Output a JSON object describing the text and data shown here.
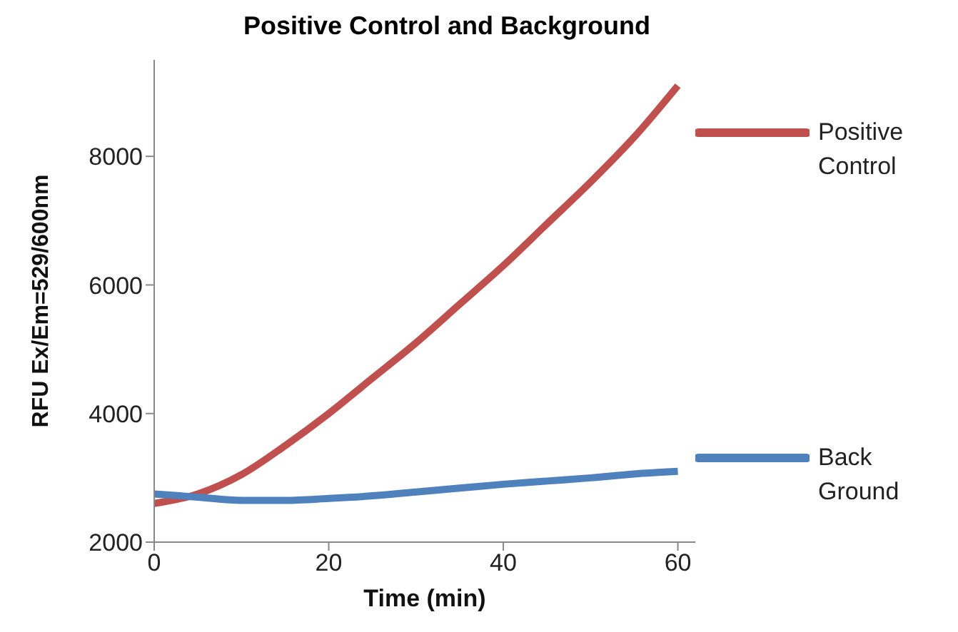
{
  "chart_data": {
    "type": "line",
    "title": "Positive Control and Background",
    "xlabel": "Time (min)",
    "ylabel": "RFU Ex/Em=529/600nm",
    "x": [
      0,
      5,
      10,
      15,
      20,
      25,
      30,
      35,
      40,
      45,
      50,
      55,
      60
    ],
    "series": [
      {
        "name": "Positive Control",
        "color": "#c0504d",
        "values": [
          2600,
          2750,
          3050,
          3500,
          4000,
          4550,
          5100,
          5700,
          6300,
          6950,
          7600,
          8300,
          9100
        ]
      },
      {
        "name": "Back Ground",
        "color": "#4f81bd",
        "values": [
          2750,
          2700,
          2650,
          2650,
          2680,
          2720,
          2780,
          2840,
          2900,
          2950,
          3000,
          3060,
          3100
        ]
      }
    ],
    "xlim": [
      0,
      62
    ],
    "xticks": [
      0,
      20,
      40,
      60
    ],
    "ylim": [
      2000,
      9500
    ],
    "yticks": [
      2000,
      4000,
      6000,
      8000
    ],
    "grid": false,
    "legend": "right",
    "marker": "none",
    "line_style": "solid"
  }
}
